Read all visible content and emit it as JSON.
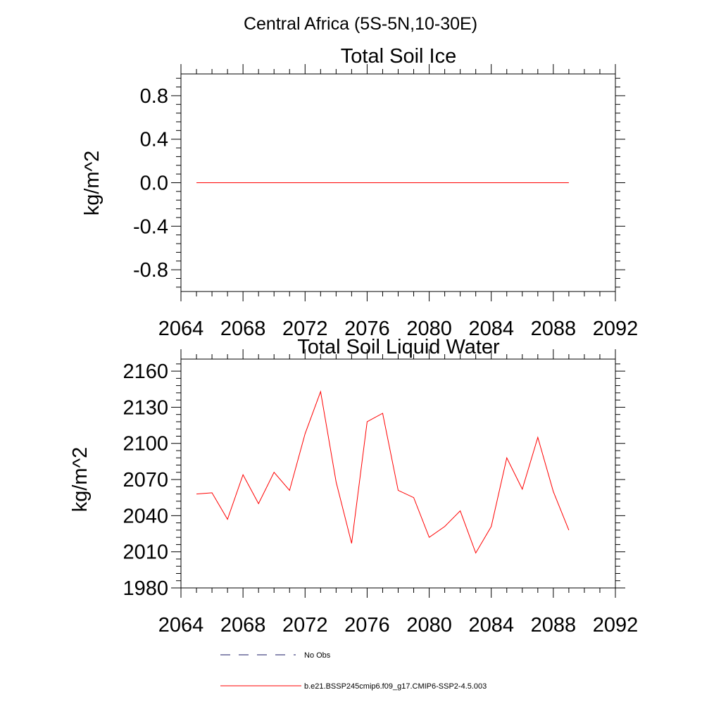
{
  "suptitle": "Central Africa (5S-5N,10-30E)",
  "chart_data": [
    {
      "type": "line",
      "title": "Total Soil Ice",
      "ylabel": "kg/m^2",
      "xlabel": "",
      "xlim": [
        2064,
        2092
      ],
      "ylim": [
        -1.0,
        1.0
      ],
      "xticks": [
        2064,
        2068,
        2072,
        2076,
        2080,
        2084,
        2088,
        2092
      ],
      "xtick_labels": [
        "2064",
        "2068",
        "2072",
        "2076",
        "2080",
        "2084",
        "2088",
        "2092"
      ],
      "yticks": [
        -0.8,
        -0.4,
        0.0,
        0.4,
        0.8
      ],
      "ytick_labels": [
        "-0.8",
        "-0.4",
        "0.0",
        "0.4",
        "0.8"
      ],
      "grid": false,
      "series": [
        {
          "name": "b.e21.BSSP245cmip6.f09_g17.CMIP6-SSP2-4.5.003",
          "color": "#ff0000",
          "x": [
            2065,
            2066,
            2067,
            2068,
            2069,
            2070,
            2071,
            2072,
            2073,
            2074,
            2075,
            2076,
            2077,
            2078,
            2079,
            2080,
            2081,
            2082,
            2083,
            2084,
            2085,
            2086,
            2087,
            2088,
            2089
          ],
          "y": [
            0,
            0,
            0,
            0,
            0,
            0,
            0,
            0,
            0,
            0,
            0,
            0,
            0,
            0,
            0,
            0,
            0,
            0,
            0,
            0,
            0,
            0,
            0,
            0,
            0
          ]
        }
      ]
    },
    {
      "type": "line",
      "title": "Total Soil Liquid Water",
      "ylabel": "kg/m^2",
      "xlabel": "",
      "xlim": [
        2064,
        2092
      ],
      "ylim": [
        1980,
        2170
      ],
      "xticks": [
        2064,
        2068,
        2072,
        2076,
        2080,
        2084,
        2088,
        2092
      ],
      "xtick_labels": [
        "2064",
        "2068",
        "2072",
        "2076",
        "2080",
        "2084",
        "2088",
        "2092"
      ],
      "yticks": [
        1980,
        2010,
        2040,
        2070,
        2100,
        2130,
        2160
      ],
      "ytick_labels": [
        "1980",
        "2010",
        "2040",
        "2070",
        "2100",
        "2130",
        "2160"
      ],
      "grid": false,
      "series": [
        {
          "name": "b.e21.BSSP245cmip6.f09_g17.CMIP6-SSP2-4.5.003",
          "color": "#ff0000",
          "x": [
            2065,
            2066,
            2067,
            2068,
            2069,
            2070,
            2071,
            2072,
            2073,
            2074,
            2075,
            2076,
            2077,
            2078,
            2079,
            2080,
            2081,
            2082,
            2083,
            2084,
            2085,
            2086,
            2087,
            2088,
            2089
          ],
          "y": [
            2058,
            2059,
            2037,
            2074,
            2050,
            2076,
            2061,
            2108,
            2143,
            2068,
            2017,
            2118,
            2125,
            2061,
            2055,
            2022,
            2031,
            2044,
            2009,
            2031,
            2088,
            2062,
            2105,
            2060,
            2028
          ]
        }
      ]
    }
  ],
  "legend": {
    "placement": "bottom",
    "entries": [
      {
        "label": "No Obs",
        "color": "#1a1a66",
        "style": "dashed"
      },
      {
        "label": "b.e21.BSSP245cmip6.f09_g17.CMIP6-SSP2-4.5.003",
        "color": "#ff0000",
        "style": "solid"
      }
    ]
  }
}
